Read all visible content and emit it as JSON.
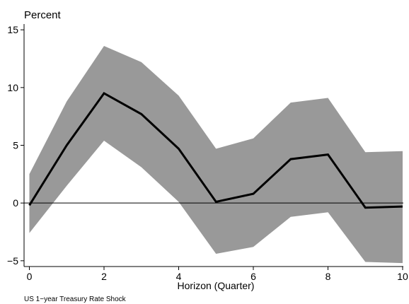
{
  "chart_data": {
    "type": "line",
    "unit_label": "Percent",
    "xlabel": "Horizon (Quarter)",
    "ylabel": "",
    "caption": "US 1−year Treasury Rate Shock",
    "xlim": [
      0,
      10
    ],
    "ylim": [
      -5.5,
      15.5
    ],
    "x_ticks": [
      0,
      2,
      4,
      6,
      8,
      10
    ],
    "y_ticks": [
      -5,
      0,
      5,
      10,
      15
    ],
    "y_tick_labels": [
      "−5",
      "0",
      "5",
      "10",
      "15"
    ],
    "zero_line": 0,
    "grid": false,
    "x": [
      0,
      1,
      2,
      3,
      4,
      5,
      6,
      7,
      8,
      9,
      10
    ],
    "series": [
      {
        "role": "point_estimate",
        "values": [
          -0.2,
          5.0,
          9.5,
          7.7,
          4.7,
          0.1,
          0.8,
          3.8,
          4.2,
          -0.4,
          -0.3
        ]
      }
    ],
    "band": {
      "upper": [
        2.5,
        8.8,
        13.6,
        12.2,
        9.3,
        4.7,
        5.6,
        8.7,
        9.1,
        4.4,
        4.5
      ],
      "lower": [
        -2.6,
        1.5,
        5.4,
        3.1,
        0.1,
        -4.4,
        -3.8,
        -1.2,
        -0.8,
        -5.1,
        -5.2
      ]
    },
    "colors": {
      "line": "#000000",
      "band": "#999999",
      "zero_line": "#000000",
      "axes": "#000000"
    }
  }
}
